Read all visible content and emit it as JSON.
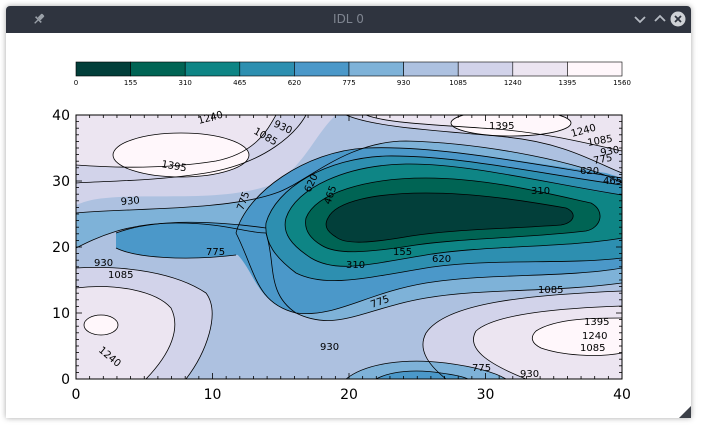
{
  "window": {
    "title": "IDL 0",
    "icons": {
      "pin": "pin-icon",
      "minimize": "chevron-down-icon",
      "maximize": "chevron-up-icon",
      "close": "close-icon"
    }
  },
  "colorbar": {
    "levels": [
      "0",
      "155",
      "310",
      "465",
      "620",
      "775",
      "930",
      "1085",
      "1240",
      "1395",
      "1560"
    ],
    "colors": [
      "#023f3a",
      "#006454",
      "#0e8585",
      "#2d8fb0",
      "#4b98c9",
      "#7eb2d8",
      "#adc1e0",
      "#d2d3ea",
      "#ece5f1",
      "#fff7fb"
    ]
  },
  "plot": {
    "x_ticks": [
      "0",
      "10",
      "20",
      "30",
      "40"
    ],
    "y_ticks": [
      "0",
      "10",
      "20",
      "30",
      "40"
    ],
    "contour_labels": [
      "1240",
      "930",
      "1085",
      "1395",
      "930",
      "775",
      "620",
      "465",
      "930",
      "775",
      "1085",
      "155",
      "310",
      "620",
      "1395",
      "1240",
      "1085",
      "930",
      "775",
      "620",
      "465",
      "310",
      "1240",
      "930",
      "775",
      "1085",
      "1395",
      "1240",
      "1085",
      "930",
      "775"
    ]
  }
}
